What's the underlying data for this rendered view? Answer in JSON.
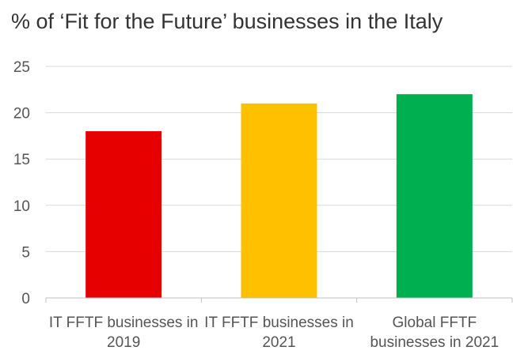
{
  "chart_data": {
    "type": "bar",
    "title": "% of ‘Fit for the Future’ businesses in the Italy",
    "categories": [
      [
        "IT FFTF businesses in",
        "2019"
      ],
      [
        "IT FFTF businesses in",
        "2021"
      ],
      [
        "Global FFTF",
        "businesses in 2021"
      ]
    ],
    "values": [
      18,
      21,
      22
    ],
    "colors": [
      "#e60000",
      "#ffc000",
      "#00b050"
    ],
    "ylim": [
      0,
      25
    ],
    "yticks": [
      0,
      5,
      10,
      15,
      20,
      25
    ],
    "grid": true,
    "xlabel": "",
    "ylabel": ""
  }
}
